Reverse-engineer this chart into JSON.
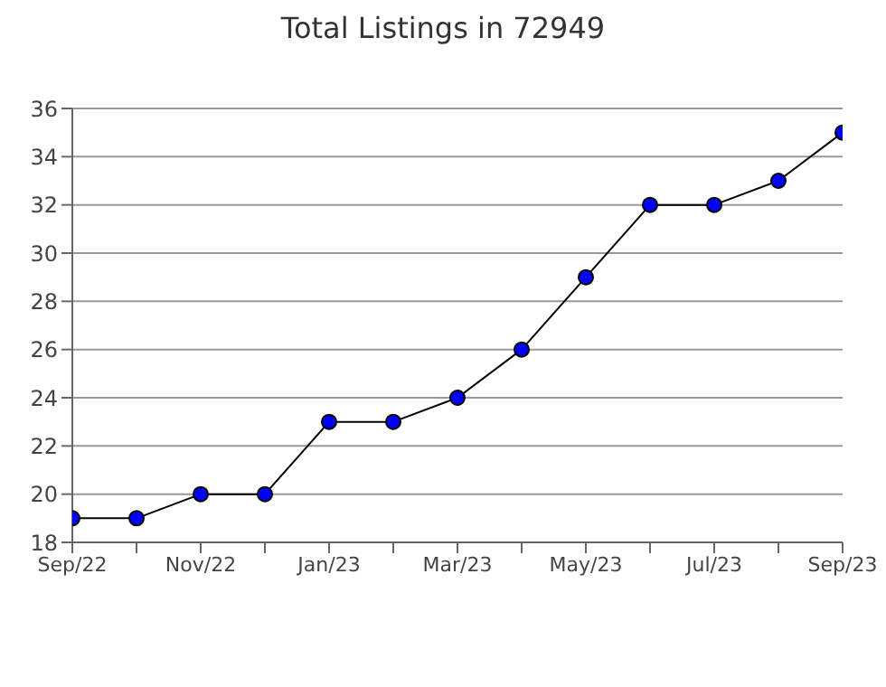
{
  "chart_data": {
    "type": "line",
    "title": "Total Listings in 72949",
    "categories": [
      "Sep/22",
      null,
      "Nov/22",
      null,
      "Jan/23",
      null,
      "Mar/23",
      null,
      "May/23",
      null,
      "Jul/23",
      null,
      "Sep/23"
    ],
    "series": [
      {
        "color": "#0000ff",
        "values": [
          19,
          19,
          20,
          20,
          23,
          23,
          24,
          26,
          29,
          32,
          32,
          33,
          35
        ]
      }
    ],
    "ylim": [
      18,
      36
    ],
    "yticks": [
      18,
      20,
      22,
      24,
      26,
      28,
      30,
      32,
      34,
      36
    ],
    "grid": "y",
    "marker": "circle",
    "line_style": "solid"
  }
}
